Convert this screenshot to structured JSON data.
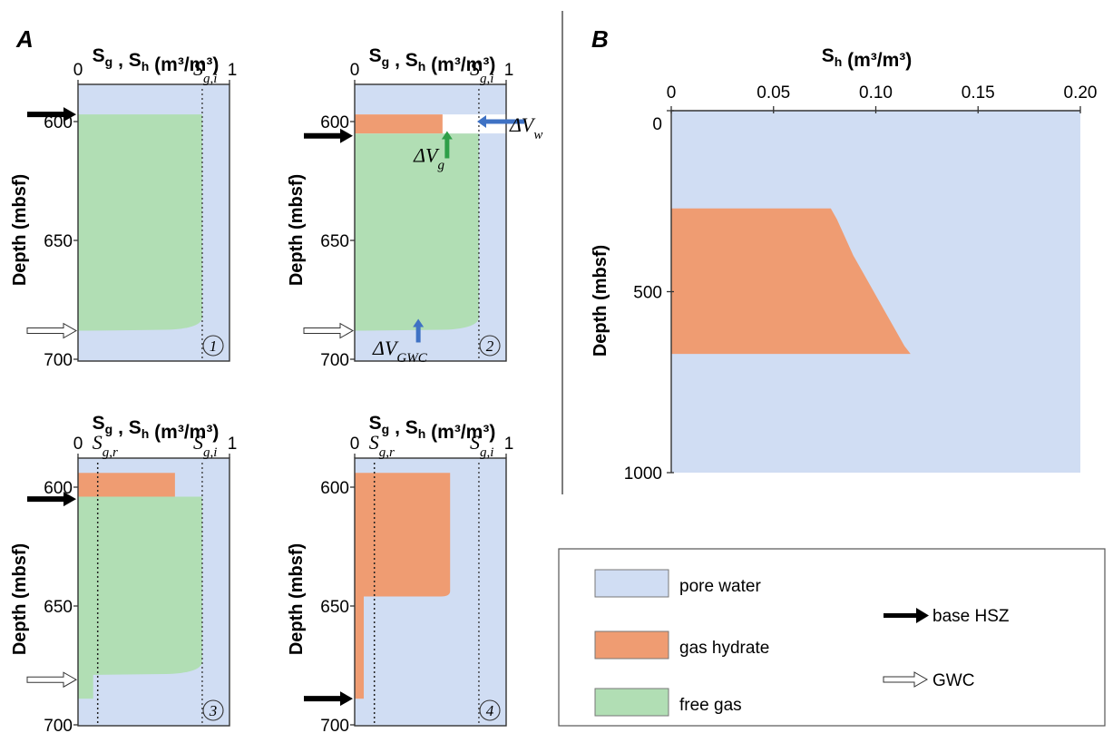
{
  "chart_data": [
    {
      "type": "area",
      "panel": "A",
      "panel_number": "1",
      "title_main": "S",
      "title_sub1": "g",
      "title_sep": " , ",
      "title_sub2": "h",
      "title_units": " (m³/m³)",
      "xlabel": "S_g , S_h (m³/m³)",
      "ylabel": "Depth (mbsf)",
      "xlim": [
        0,
        1
      ],
      "ylim": [
        700,
        596
      ],
      "y_ticks": [
        600,
        650,
        700
      ],
      "x_tick_left": "0",
      "x_tick_right": "1",
      "sgi_label": "S",
      "sgi_sub": "g,i",
      "sgi_value": 0.82,
      "free_gas": {
        "top": 597,
        "gwc": 688,
        "saturation": 0.82
      },
      "hydrate": null,
      "base_hsz_depth": 597,
      "gwc_depth": 688
    },
    {
      "type": "area",
      "panel": "A",
      "panel_number": "2",
      "title_main": "S",
      "title_sub1": "g",
      "title_sep": " , ",
      "title_sub2": "h",
      "title_units": " (m³/m³)",
      "xlabel": "S_g , S_h (m³/m³)",
      "ylabel": "Depth (mbsf)",
      "xlim": [
        0,
        1
      ],
      "ylim": [
        700,
        596
      ],
      "y_ticks": [
        600,
        650,
        700
      ],
      "x_tick_left": "0",
      "x_tick_right": "1",
      "sgi_label": "S",
      "sgi_sub": "g,i",
      "sgi_value": 0.82,
      "hydrate": {
        "top": 597,
        "bottom": 605,
        "saturation": 0.58
      },
      "water_gap": {
        "top": 597,
        "bottom": 605
      },
      "free_gas": {
        "top": 605,
        "gwc": 688,
        "saturation": 0.82
      },
      "base_hsz_depth": 606,
      "gwc_depth": 688,
      "annotations": {
        "dvw": "ΔV",
        "dvw_sub": "w",
        "dvg": "ΔV",
        "dvg_sub": "g",
        "dvgwc": "ΔV",
        "dvgwc_sub": "GWC"
      }
    },
    {
      "type": "area",
      "panel": "A",
      "panel_number": "3",
      "title_main": "S",
      "title_sub1": "g",
      "title_sep": " , ",
      "title_sub2": "h",
      "title_units": " (m³/m³)",
      "xlabel": "S_g , S_h (m³/m³)",
      "ylabel": "Depth (mbsf)",
      "xlim": [
        0,
        1
      ],
      "ylim": [
        700,
        593
      ],
      "y_ticks": [
        600,
        650,
        700
      ],
      "x_tick_left": "0",
      "x_tick_right": "1",
      "sgi_label": "S",
      "sgi_sub": "g,i",
      "sgi_value": 0.82,
      "sgr_label": "S",
      "sgr_sub": "g,r",
      "sgr_value": 0.13,
      "hydrate": {
        "top": 594,
        "bottom": 604,
        "saturation": 0.64
      },
      "free_gas": {
        "top": 604,
        "gwc": 679,
        "saturation": 0.82
      },
      "residual_gas": {
        "top": 679,
        "bottom": 689,
        "saturation": 0.13
      },
      "base_hsz_depth": 605,
      "gwc_depth": 681
    },
    {
      "type": "area",
      "panel": "A",
      "panel_number": "4",
      "title_main": "S",
      "title_sub1": "g",
      "title_sep": " , ",
      "title_sub2": "h",
      "title_units": " (m³/m³)",
      "xlabel": "S_g , S_h (m³/m³)",
      "ylabel": "Depth (mbsf)",
      "xlim": [
        0,
        1
      ],
      "ylim": [
        700,
        593
      ],
      "y_ticks": [
        600,
        650,
        700
      ],
      "x_tick_left": "0",
      "x_tick_right": "1",
      "sgi_label": "S",
      "sgi_sub": "g,i",
      "sgi_value": 0.82,
      "sgr_label": "S",
      "sgr_sub": "g,r",
      "sgr_value": 0.13,
      "hydrate": {
        "top": 594,
        "bottom": 646,
        "saturation": 0.63
      },
      "hydrate_lower": {
        "top": 646,
        "bottom": 689,
        "saturation": 0.06
      },
      "base_hsz_depth": 689
    },
    {
      "type": "area",
      "panel": "B",
      "title_main": "S",
      "title_sub": "h",
      "title_units": " (m³/m³)",
      "ylabel": "Depth (mbsf)",
      "xlim": [
        0,
        0.2
      ],
      "ylim": [
        1000,
        0
      ],
      "x_ticks": [
        "0",
        "0.05",
        "0.10",
        "0.15",
        "0.20"
      ],
      "x_tick_values": [
        0,
        0.05,
        0.1,
        0.15,
        0.2
      ],
      "y_ticks": [
        0,
        500,
        1000
      ],
      "hydrate_profile": {
        "depth": [
          270,
          300,
          350,
          400,
          450,
          500,
          550,
          600,
          650,
          672
        ],
        "sh": [
          0.078,
          0.081,
          0.085,
          0.089,
          0.094,
          0.099,
          0.104,
          0.109,
          0.114,
          0.117
        ]
      }
    }
  ],
  "panel_letters": {
    "a": "A",
    "b": "B"
  },
  "legend": {
    "items": [
      {
        "label": "pore water",
        "color": "#d0ddf3"
      },
      {
        "label": "gas hydrate",
        "color": "#ef9c72"
      },
      {
        "label": "free gas",
        "color": "#b1deb4"
      }
    ],
    "base_hsz": "base HSZ",
    "gwc": "GWC"
  },
  "colors": {
    "water": "#d0ddf3",
    "hydrate": "#ef9c72",
    "gas": "#b1deb4",
    "blue_arrow": "#3f72c4",
    "green_arrow": "#2e9f48"
  }
}
